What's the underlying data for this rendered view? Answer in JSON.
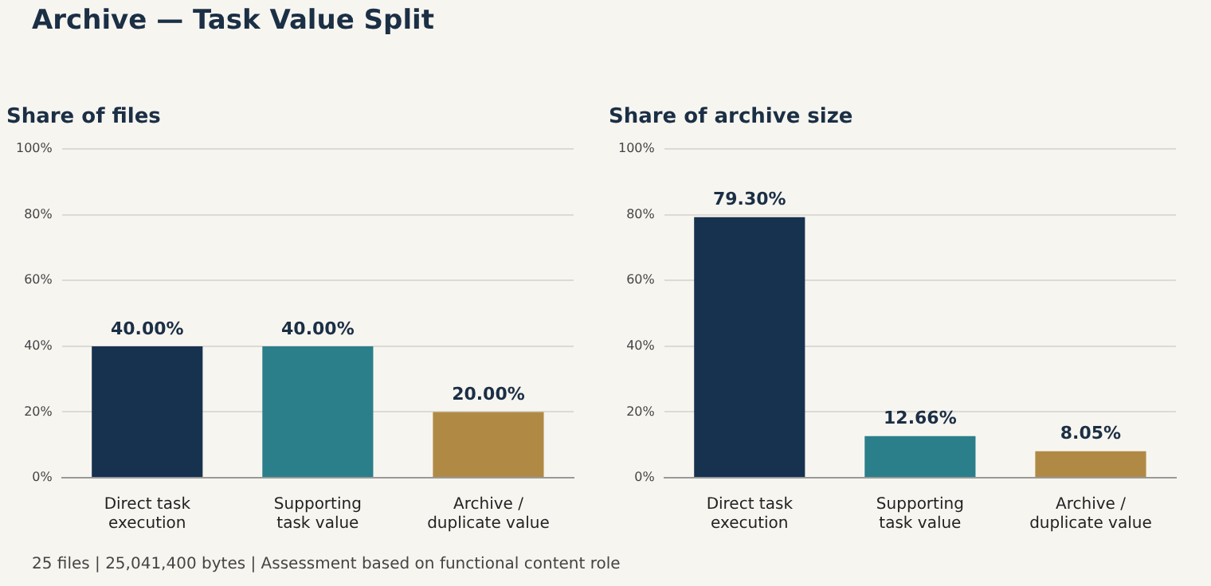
{
  "chart_data": [
    {
      "type": "other",
      "title": "Archive — Task Value Split",
      "annotations": [
        "25 files | 25,041,400 bytes | Assessment based on functional content role"
      ]
    },
    {
      "type": "bar",
      "title": "Share of files",
      "categories": [
        "Direct task\nexecution",
        "Supporting\ntask value",
        "Archive /\nduplicate value"
      ],
      "values": [
        40,
        40,
        20
      ],
      "colors": [
        "#16324f",
        "#2a7f8a",
        "#b08a45"
      ],
      "value_labels": [
        "40.00%",
        "40.00%",
        "20.00%"
      ],
      "ylim": [
        0,
        100
      ],
      "yticks": [
        {
          "value": 0,
          "label": "0%"
        },
        {
          "value": 20,
          "label": "20%"
        },
        {
          "value": 40,
          "label": "40%"
        },
        {
          "value": 60,
          "label": "60%"
        },
        {
          "value": 80,
          "label": "80%"
        },
        {
          "value": 100,
          "label": "100%"
        }
      ],
      "grid": "y"
    },
    {
      "type": "bar",
      "title": "Share of archive size",
      "categories": [
        "Direct task\nexecution",
        "Supporting\ntask value",
        "Archive /\nduplicate value"
      ],
      "values": [
        79.3,
        12.66,
        8.05
      ],
      "colors": [
        "#16324f",
        "#2a7f8a",
        "#b08a45"
      ],
      "value_labels": [
        "79.30%",
        "12.66%",
        "8.05%"
      ],
      "ylim": [
        0,
        100
      ],
      "yticks": [
        {
          "value": 0,
          "label": "0%"
        },
        {
          "value": 20,
          "label": "20%"
        },
        {
          "value": 40,
          "label": "40%"
        },
        {
          "value": 60,
          "label": "60%"
        },
        {
          "value": 80,
          "label": "80%"
        },
        {
          "value": 100,
          "label": "100%"
        }
      ],
      "grid": "y"
    }
  ]
}
